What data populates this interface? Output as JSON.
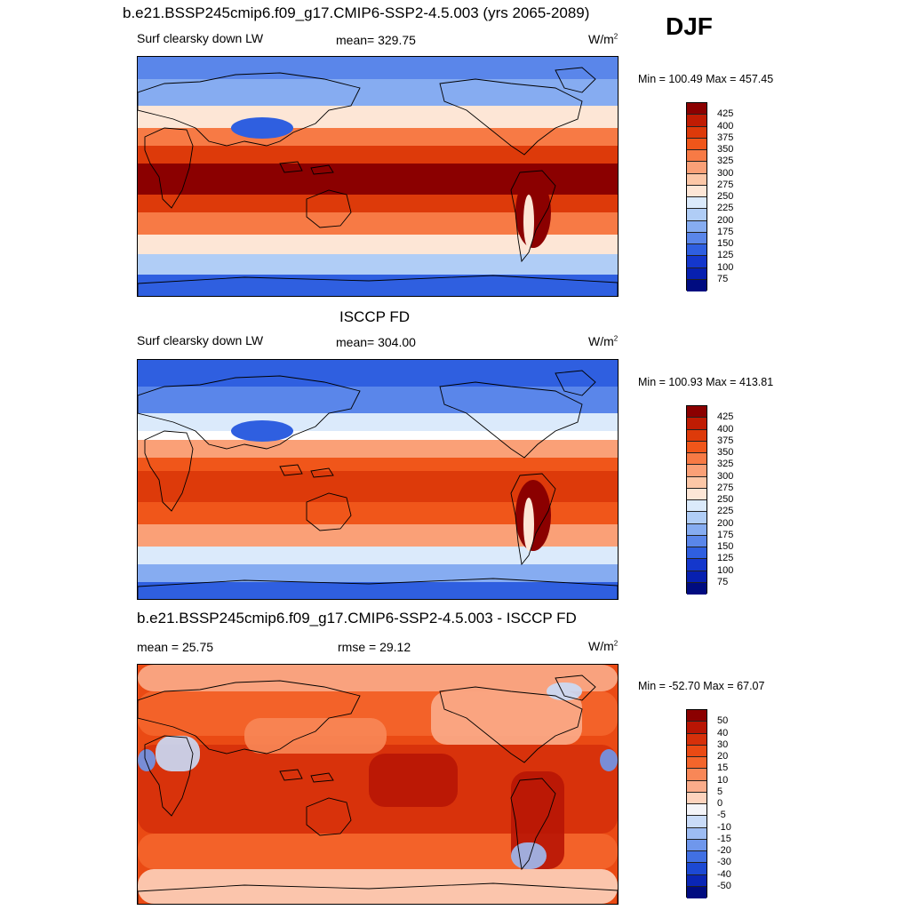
{
  "season": "DJF",
  "panels": [
    {
      "title": "b.e21.BSSP245cmip6.f09_g17.CMIP6-SSP2-4.5.003 (yrs 2065-2089)",
      "left_label": "Surf clearsky down LW",
      "center_label": "mean= 329.75",
      "units": "W/m",
      "units_sup": "2",
      "minmax": "Min = 100.49 Max = 457.45",
      "levels": [
        "425",
        "400",
        "375",
        "350",
        "325",
        "300",
        "275",
        "250",
        "225",
        "200",
        "175",
        "150",
        "125",
        "100",
        "75"
      ],
      "colors": [
        "#8b0000",
        "#c01c03",
        "#dd3a0a",
        "#f0561a",
        "#f77a45",
        "#faa077",
        "#fcc7a7",
        "#fde6d6",
        "#dbeafb",
        "#b0cdf6",
        "#86acf1",
        "#5a86ea",
        "#2f5fe0",
        "#1437cc",
        "#0720b0",
        "#000c80"
      ],
      "map_kind": "absolute"
    },
    {
      "title": "ISCCP FD",
      "left_label": "Surf clearsky down LW",
      "center_label": "mean= 304.00",
      "units": "W/m",
      "units_sup": "2",
      "minmax": "Min = 100.93 Max = 413.81",
      "levels": [
        "425",
        "400",
        "375",
        "350",
        "325",
        "300",
        "275",
        "250",
        "225",
        "200",
        "175",
        "150",
        "125",
        "100",
        "75"
      ],
      "colors": [
        "#8b0000",
        "#c01c03",
        "#dd3a0a",
        "#f0561a",
        "#f77a45",
        "#faa077",
        "#fcc7a7",
        "#fde6d6",
        "#dbeafb",
        "#b0cdf6",
        "#86acf1",
        "#5a86ea",
        "#2f5fe0",
        "#1437cc",
        "#0720b0",
        "#000c80"
      ],
      "map_kind": "absolute_obs"
    },
    {
      "title": "b.e21.BSSP245cmip6.f09_g17.CMIP6-SSP2-4.5.003 - ISCCP FD",
      "left_label": "mean =  25.75",
      "center_label": "rmse =  29.12",
      "units": "W/m",
      "units_sup": "2",
      "minmax": "Min = -52.70 Max =  67.07",
      "levels": [
        "50",
        "40",
        "30",
        "20",
        "15",
        "10",
        "5",
        "0",
        "-5",
        "-10",
        "-15",
        "-20",
        "-30",
        "-40",
        "-50"
      ],
      "colors": [
        "#8b0000",
        "#b81504",
        "#d6300a",
        "#ea4a14",
        "#f4652b",
        "#f88757",
        "#fbac8a",
        "#fdd3bd",
        "#f4f4f8",
        "#c9dbf8",
        "#9dbcf3",
        "#6f97ec",
        "#4170e3",
        "#1c49d3",
        "#0a26b5",
        "#000c80"
      ],
      "map_kind": "difference"
    }
  ]
}
